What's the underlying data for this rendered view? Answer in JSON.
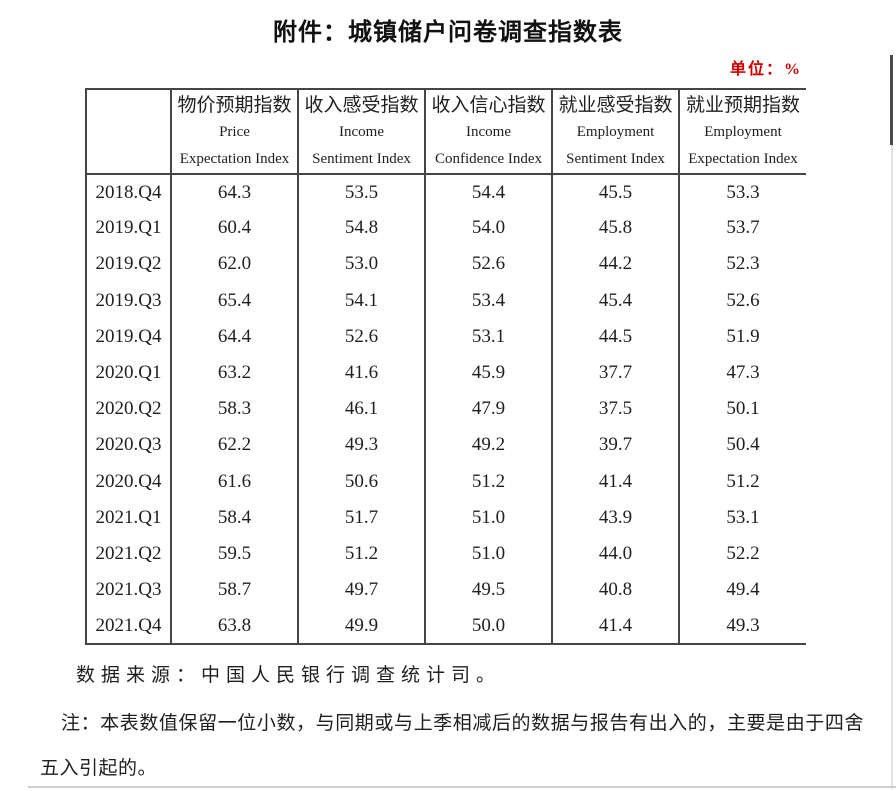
{
  "document": {
    "title": "附件：城镇储户问卷调查指数表",
    "unit_label": "单位：%",
    "source": "数据来源：中国人民银行调查统计司。",
    "note": "注：本表数值保留一位小数，与同期或与上季相减后的数据与报告有出入的，主要是由于四舍五入引起的。"
  },
  "colors": {
    "unit_label_red": "#cc0000",
    "table_border": "#454545",
    "text": "#1f1f1f"
  },
  "chart_data": {
    "type": "table",
    "title": "城镇储户问卷调查指数表",
    "unit": "%",
    "columns": [
      {
        "zh": "物价预期指数",
        "en_line1": "Price",
        "en_line2": "Expectation Index"
      },
      {
        "zh": "收入感受指数",
        "en_line1": "Income",
        "en_line2": "Sentiment Index"
      },
      {
        "zh": "收入信心指数",
        "en_line1": "Income",
        "en_line2": "Confidence Index"
      },
      {
        "zh": "就业感受指数",
        "en_line1": "Employment",
        "en_line2": "Sentiment Index"
      },
      {
        "zh": "就业预期指数",
        "en_line1": "Employment",
        "en_line2": "Expectation Index"
      }
    ],
    "rows": [
      {
        "period": "2018.Q4",
        "values": [
          "64.3",
          "53.5",
          "54.4",
          "45.5",
          "53.3"
        ]
      },
      {
        "period": "2019.Q1",
        "values": [
          "60.4",
          "54.8",
          "54.0",
          "45.8",
          "53.7"
        ]
      },
      {
        "period": "2019.Q2",
        "values": [
          "62.0",
          "53.0",
          "52.6",
          "44.2",
          "52.3"
        ]
      },
      {
        "period": "2019.Q3",
        "values": [
          "65.4",
          "54.1",
          "53.4",
          "45.4",
          "52.6"
        ]
      },
      {
        "period": "2019.Q4",
        "values": [
          "64.4",
          "52.6",
          "53.1",
          "44.5",
          "51.9"
        ]
      },
      {
        "period": "2020.Q1",
        "values": [
          "63.2",
          "41.6",
          "45.9",
          "37.7",
          "47.3"
        ]
      },
      {
        "period": "2020.Q2",
        "values": [
          "58.3",
          "46.1",
          "47.9",
          "37.5",
          "50.1"
        ]
      },
      {
        "period": "2020.Q3",
        "values": [
          "62.2",
          "49.3",
          "49.2",
          "39.7",
          "50.4"
        ]
      },
      {
        "period": "2020.Q4",
        "values": [
          "61.6",
          "50.6",
          "51.2",
          "41.4",
          "51.2"
        ]
      },
      {
        "period": "2021.Q1",
        "values": [
          "58.4",
          "51.7",
          "51.0",
          "43.9",
          "53.1"
        ]
      },
      {
        "period": "2021.Q2",
        "values": [
          "59.5",
          "51.2",
          "51.0",
          "44.0",
          "52.2"
        ]
      },
      {
        "period": "2021.Q3",
        "values": [
          "58.7",
          "49.7",
          "49.5",
          "40.8",
          "49.4"
        ]
      },
      {
        "period": "2021.Q4",
        "values": [
          "63.8",
          "49.9",
          "50.0",
          "41.4",
          "49.3"
        ]
      }
    ]
  }
}
